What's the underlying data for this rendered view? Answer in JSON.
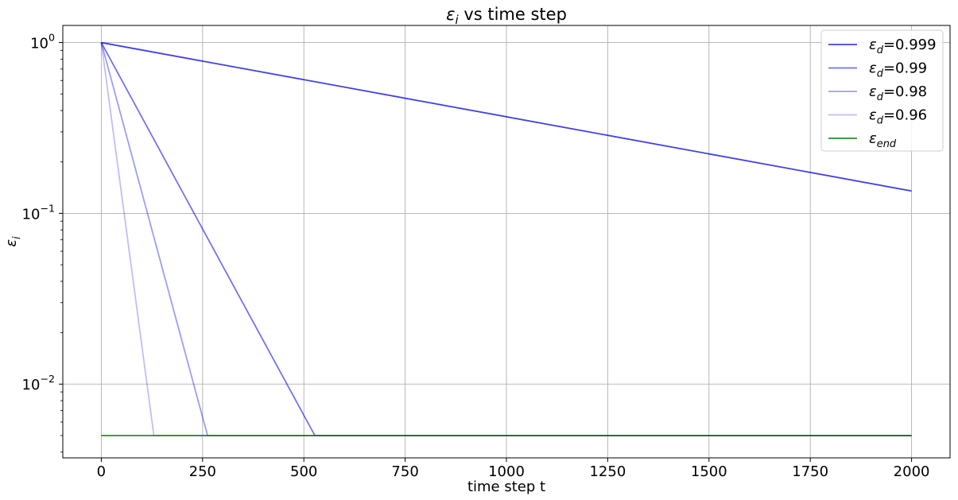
{
  "chart_data": {
    "type": "line",
    "title": {
      "symbol": "ε",
      "sub": "i",
      "rest": " vs time step"
    },
    "xlabel": "time step t",
    "ylabel": {
      "symbol": "ε",
      "sub": "i"
    },
    "yscale": "log",
    "xlim": [
      -95,
      2095
    ],
    "ylim": [
      0.0037,
      1.26
    ],
    "grid": true,
    "legend_position": "top-right",
    "x_ticks": [
      0,
      250,
      500,
      750,
      1000,
      1250,
      1500,
      1750,
      2000
    ],
    "y_ticks": [
      {
        "value": 1,
        "base": "10",
        "exp": "0"
      },
      {
        "value": 0.1,
        "base": "10",
        "exp": "−1"
      },
      {
        "value": 0.01,
        "base": "10",
        "exp": "−2"
      }
    ],
    "series": [
      {
        "name": "ε_d=0.999",
        "label_symbol": "ε",
        "label_sub": "d",
        "label_rest": "=0.999",
        "decay": 0.999,
        "color": "#0000dd",
        "opacity": 0.75
      },
      {
        "name": "ε_d=0.99",
        "label_symbol": "ε",
        "label_sub": "d",
        "label_rest": "=0.99",
        "decay": 0.99,
        "color": "#0000dd",
        "opacity": 0.55
      },
      {
        "name": "ε_d=0.98",
        "label_symbol": "ε",
        "label_sub": "d",
        "label_rest": "=0.98",
        "decay": 0.98,
        "color": "#0000dd",
        "opacity": 0.38
      },
      {
        "name": "ε_d=0.96",
        "label_symbol": "ε",
        "label_sub": "d",
        "label_rest": "=0.96",
        "decay": 0.96,
        "color": "#0000dd",
        "opacity": 0.25
      },
      {
        "name": "ε_end",
        "label_symbol": "ε",
        "label_sub": "end",
        "label_rest": "",
        "constant": 0.005,
        "color": "#008000",
        "opacity": 0.85
      }
    ],
    "x_start": 0,
    "x_end": 2000,
    "epsilon_start": 1.0,
    "epsilon_end": 0.005
  }
}
